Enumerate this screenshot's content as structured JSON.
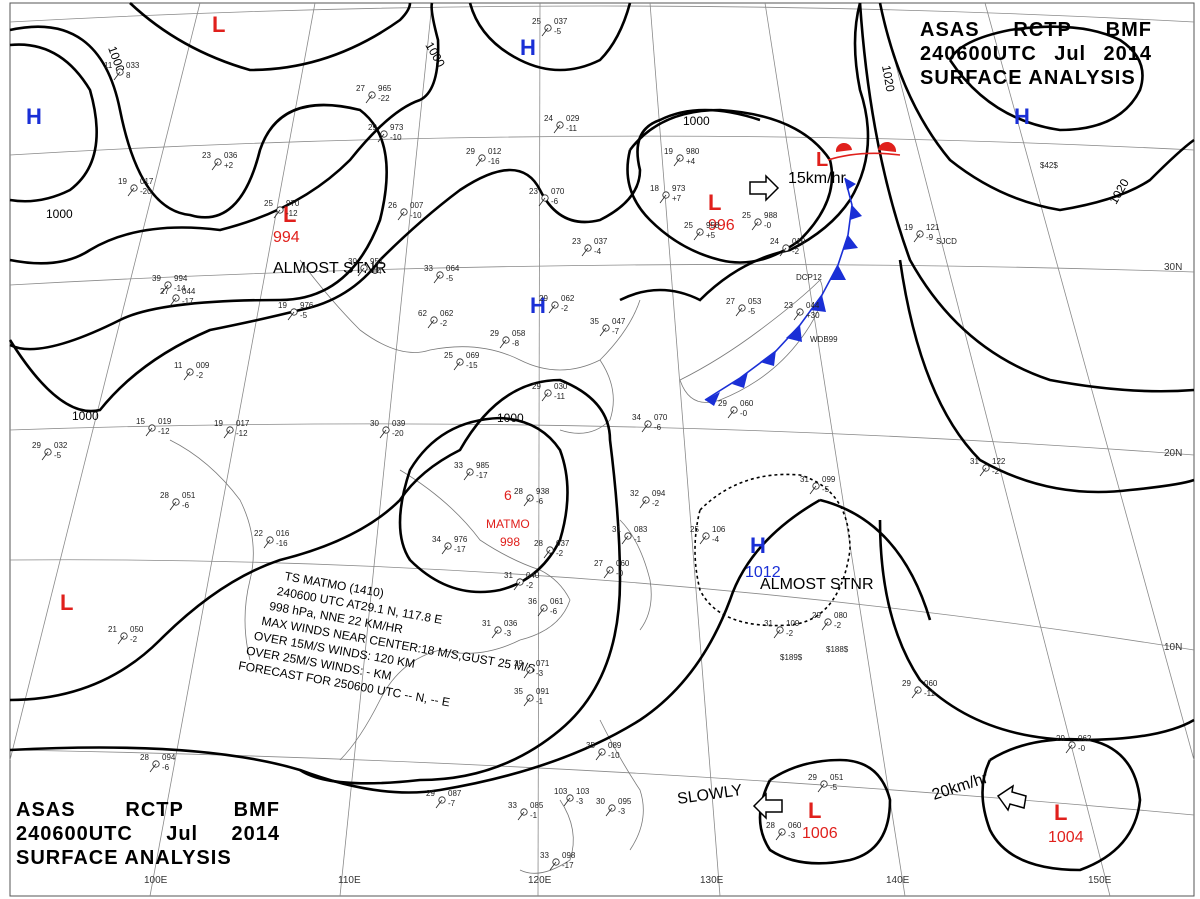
{
  "header": {
    "line1": [
      "ASAS",
      "RCTP",
      "BMF"
    ],
    "line2": [
      "240600UTC",
      "Jul",
      "2014"
    ],
    "line3": "SURFACE ANALYSIS"
  },
  "lat_labels": [
    "30N",
    "20N",
    "10N"
  ],
  "lon_labels": [
    "100E",
    "110E",
    "120E",
    "130E",
    "140E",
    "150E"
  ],
  "isobar_labels": {
    "i1000_topleft": "1000",
    "i1000_top": "1000",
    "i1000_left": "1000",
    "i1000_mid": "1000",
    "i1000_lower_left": "1000",
    "i1000_top_right": "1000",
    "i1020_right": "1020",
    "i1020_top": "1020"
  },
  "pressure_centers": [
    {
      "id": "h-west",
      "type": "H",
      "color": "#1a2fd6"
    },
    {
      "id": "h-north",
      "type": "H",
      "color": "#1a2fd6"
    },
    {
      "id": "h-central",
      "type": "H",
      "color": "#1a2fd6"
    },
    {
      "id": "h-ne",
      "type": "H",
      "color": "#1a2fd6"
    },
    {
      "id": "h-south",
      "type": "H",
      "color": "#1a2fd6",
      "value": "1012",
      "note": "ALMOST STNR"
    },
    {
      "id": "l-north",
      "type": "L",
      "color": "#e0201c"
    },
    {
      "id": "l-west",
      "type": "L",
      "color": "#e0201c",
      "value": "994",
      "note": "ALMOST STNR"
    },
    {
      "id": "l-ne",
      "type": "L",
      "color": "#e0201c",
      "value": "996",
      "note": "15km/hr"
    },
    {
      "id": "l-far-west",
      "type": "L",
      "color": "#e0201c"
    },
    {
      "id": "l-south",
      "type": "L",
      "color": "#e0201c",
      "value": "1006",
      "note": "SLOWLY"
    },
    {
      "id": "l-se",
      "type": "L",
      "color": "#e0201c",
      "value": "1004",
      "note": "20km/hr"
    }
  ],
  "typhoon": {
    "symbol": "6",
    "name": "MATMO",
    "pressure": "998",
    "color": "#e0201c"
  },
  "advisory": {
    "lines": [
      "TS  MATMO (1410)",
      "240600 UTC  AT29.1 N, 117.8 E",
      "998 hPa, NNE 22 KM/HR",
      "MAX WINDS NEAR CENTER:18 M/S,GUST 25 M/S",
      "OVER 15M/S WINDS: 120 KM",
      "OVER 25M/S WINDS: - KM",
      "FORECAST FOR 250600 UTC -- N, -- E"
    ]
  },
  "stations": [
    {
      "t": "25",
      "p": "037",
      "d": "-5"
    },
    {
      "t": "11",
      "p": "033",
      "d": "8"
    },
    {
      "t": "27",
      "p": "965",
      "d": "-22"
    },
    {
      "t": "29",
      "p": "973",
      "d": "-10"
    },
    {
      "t": "29",
      "p": "012",
      "d": "-16"
    },
    {
      "t": "24",
      "p": "029",
      "d": "-11"
    },
    {
      "t": "19",
      "p": "980",
      "d": "+4"
    },
    {
      "t": "18",
      "p": "973",
      "d": "+7"
    },
    {
      "t": "25",
      "p": "958",
      "d": "+5"
    },
    {
      "t": "25",
      "p": "988",
      "d": "-0"
    },
    {
      "t": "23",
      "p": "036",
      "d": "+2"
    },
    {
      "t": "19",
      "p": "017",
      "d": "-20"
    },
    {
      "t": "25",
      "p": "970",
      "d": "-12"
    },
    {
      "t": "26",
      "p": "007",
      "d": "-10"
    },
    {
      "t": "23",
      "p": "070",
      "d": "-6"
    },
    {
      "t": "23",
      "p": "037",
      "d": "-4"
    },
    {
      "t": "24",
      "p": "010",
      "d": "-2"
    },
    {
      "t": "27",
      "p": "053",
      "d": "-5"
    },
    {
      "t": "23",
      "p": "044",
      "d": "+30"
    },
    {
      "t": "19",
      "p": "121",
      "d": "-9"
    },
    {
      "t": "30",
      "p": "951",
      "d": "-14"
    },
    {
      "t": "33",
      "p": "064",
      "d": "-5"
    },
    {
      "t": "27",
      "p": "044",
      "d": "-17"
    },
    {
      "t": "29",
      "p": "062",
      "d": "-2"
    },
    {
      "t": "35",
      "p": "047",
      "d": "-7"
    },
    {
      "t": "25",
      "p": "069",
      "d": "-15"
    },
    {
      "t": "29",
      "p": "058",
      "d": "-8"
    },
    {
      "t": "29",
      "p": "030",
      "d": "-11"
    },
    {
      "t": "34",
      "p": "070",
      "d": "-6"
    },
    {
      "t": "29",
      "p": "060",
      "d": "-0"
    },
    {
      "t": "62",
      "p": "062",
      "d": "-2"
    },
    {
      "t": "39",
      "p": "994",
      "d": "-14"
    },
    {
      "t": "19",
      "p": "976",
      "d": "-5"
    },
    {
      "t": "11",
      "p": "009",
      "d": "-2"
    },
    {
      "t": "15",
      "p": "019",
      "d": "-12"
    },
    {
      "t": "19",
      "p": "017",
      "d": "-12"
    },
    {
      "t": "30",
      "p": "039",
      "d": "-20"
    },
    {
      "t": "29",
      "p": "032",
      "d": "-5"
    },
    {
      "t": "28",
      "p": "051",
      "d": "-6"
    },
    {
      "t": "22",
      "p": "016",
      "d": "-16"
    },
    {
      "t": "33",
      "p": "985",
      "d": "-17"
    },
    {
      "t": "34",
      "p": "976",
      "d": "-17"
    },
    {
      "t": "28",
      "p": "938",
      "d": "-6"
    },
    {
      "t": "32",
      "p": "094",
      "d": "-2"
    },
    {
      "t": "31",
      "p": "083",
      "d": "-1"
    },
    {
      "t": "25",
      "p": "106",
      "d": "-4"
    },
    {
      "t": "31",
      "p": "099",
      "d": "-5"
    },
    {
      "t": "31",
      "p": "122",
      "d": "-2"
    },
    {
      "t": "28",
      "p": "037",
      "d": "-2"
    },
    {
      "t": "27",
      "p": "060",
      "d": "-0"
    },
    {
      "t": "31",
      "p": "040",
      "d": "-2"
    },
    {
      "t": "36",
      "p": "061",
      "d": "-6"
    },
    {
      "t": "31",
      "p": "036",
      "d": "-3"
    },
    {
      "t": "31",
      "p": "109",
      "d": "-2"
    },
    {
      "t": "29",
      "p": "080",
      "d": "-2"
    },
    {
      "t": "29",
      "p": "060",
      "d": "-11"
    },
    {
      "t": "21",
      "p": "050",
      "d": "-2"
    },
    {
      "t": "29",
      "p": "071",
      "d": "-3"
    },
    {
      "t": "35",
      "p": "091",
      "d": "-1"
    },
    {
      "t": "35",
      "p": "089",
      "d": "-10"
    },
    {
      "t": "28",
      "p": "094",
      "d": "-6"
    },
    {
      "t": "29",
      "p": "087",
      "d": "-7"
    },
    {
      "t": "33",
      "p": "085",
      "d": "-1"
    },
    {
      "t": "103",
      "p": "103",
      "d": "-3"
    },
    {
      "t": "30",
      "p": "095",
      "d": "-3"
    },
    {
      "t": "33",
      "p": "098",
      "d": "-17"
    },
    {
      "t": "29",
      "p": "051",
      "d": "-5"
    },
    {
      "t": "28",
      "p": "060",
      "d": "-3"
    },
    {
      "t": "29",
      "p": "062",
      "d": "-0"
    }
  ],
  "station_codes": [
    "DCP12",
    "WDB99",
    "SJCD",
    "$189$",
    "$188$",
    "$42$"
  ]
}
